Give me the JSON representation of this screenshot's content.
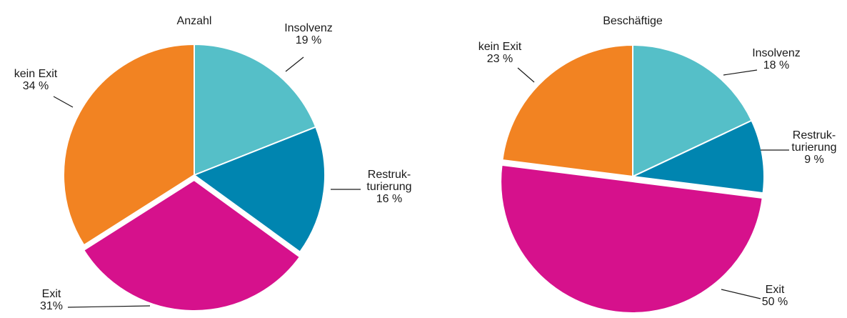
{
  "chart_data": [
    {
      "type": "pie",
      "title": "Anzahl",
      "categories": [
        "Insolvenz",
        "Restruk-\nturierung",
        "Exit",
        "kein Exit"
      ],
      "values": [
        19,
        16,
        31,
        34
      ],
      "value_labels": [
        "19 %",
        "16 %",
        "31%",
        "34 %"
      ],
      "colors": [
        "#55bfc8",
        "#0085b0",
        "#d6118c",
        "#f28322"
      ],
      "exploded": [
        false,
        false,
        true,
        false
      ]
    },
    {
      "type": "pie",
      "title": "Beschäftige",
      "categories": [
        "Insolvenz",
        "Restruk-\nturierung",
        "Exit",
        "kein Exit"
      ],
      "values": [
        18,
        9,
        50,
        23
      ],
      "value_labels": [
        "18 %",
        "9 %",
        "50 %",
        "23 %"
      ],
      "colors": [
        "#55bfc8",
        "#0085b0",
        "#d6118c",
        "#f28322"
      ],
      "exploded": [
        false,
        false,
        true,
        false
      ]
    }
  ]
}
